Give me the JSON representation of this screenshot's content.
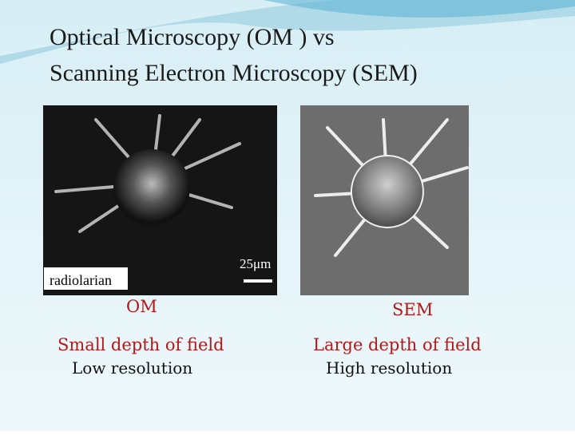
{
  "slide": {
    "title_lines": [
      "Optical Microscopy (OM ) vs",
      "Scanning Electron Microscopy (SEM)"
    ],
    "left": {
      "image_label": "radiolarian",
      "scale_label": "25μm",
      "caption": "OM",
      "lines": [
        "Small depth of field",
        "Low resolution"
      ]
    },
    "right": {
      "caption": "SEM",
      "lines": [
        "Large depth of field",
        "High resolution"
      ]
    }
  }
}
